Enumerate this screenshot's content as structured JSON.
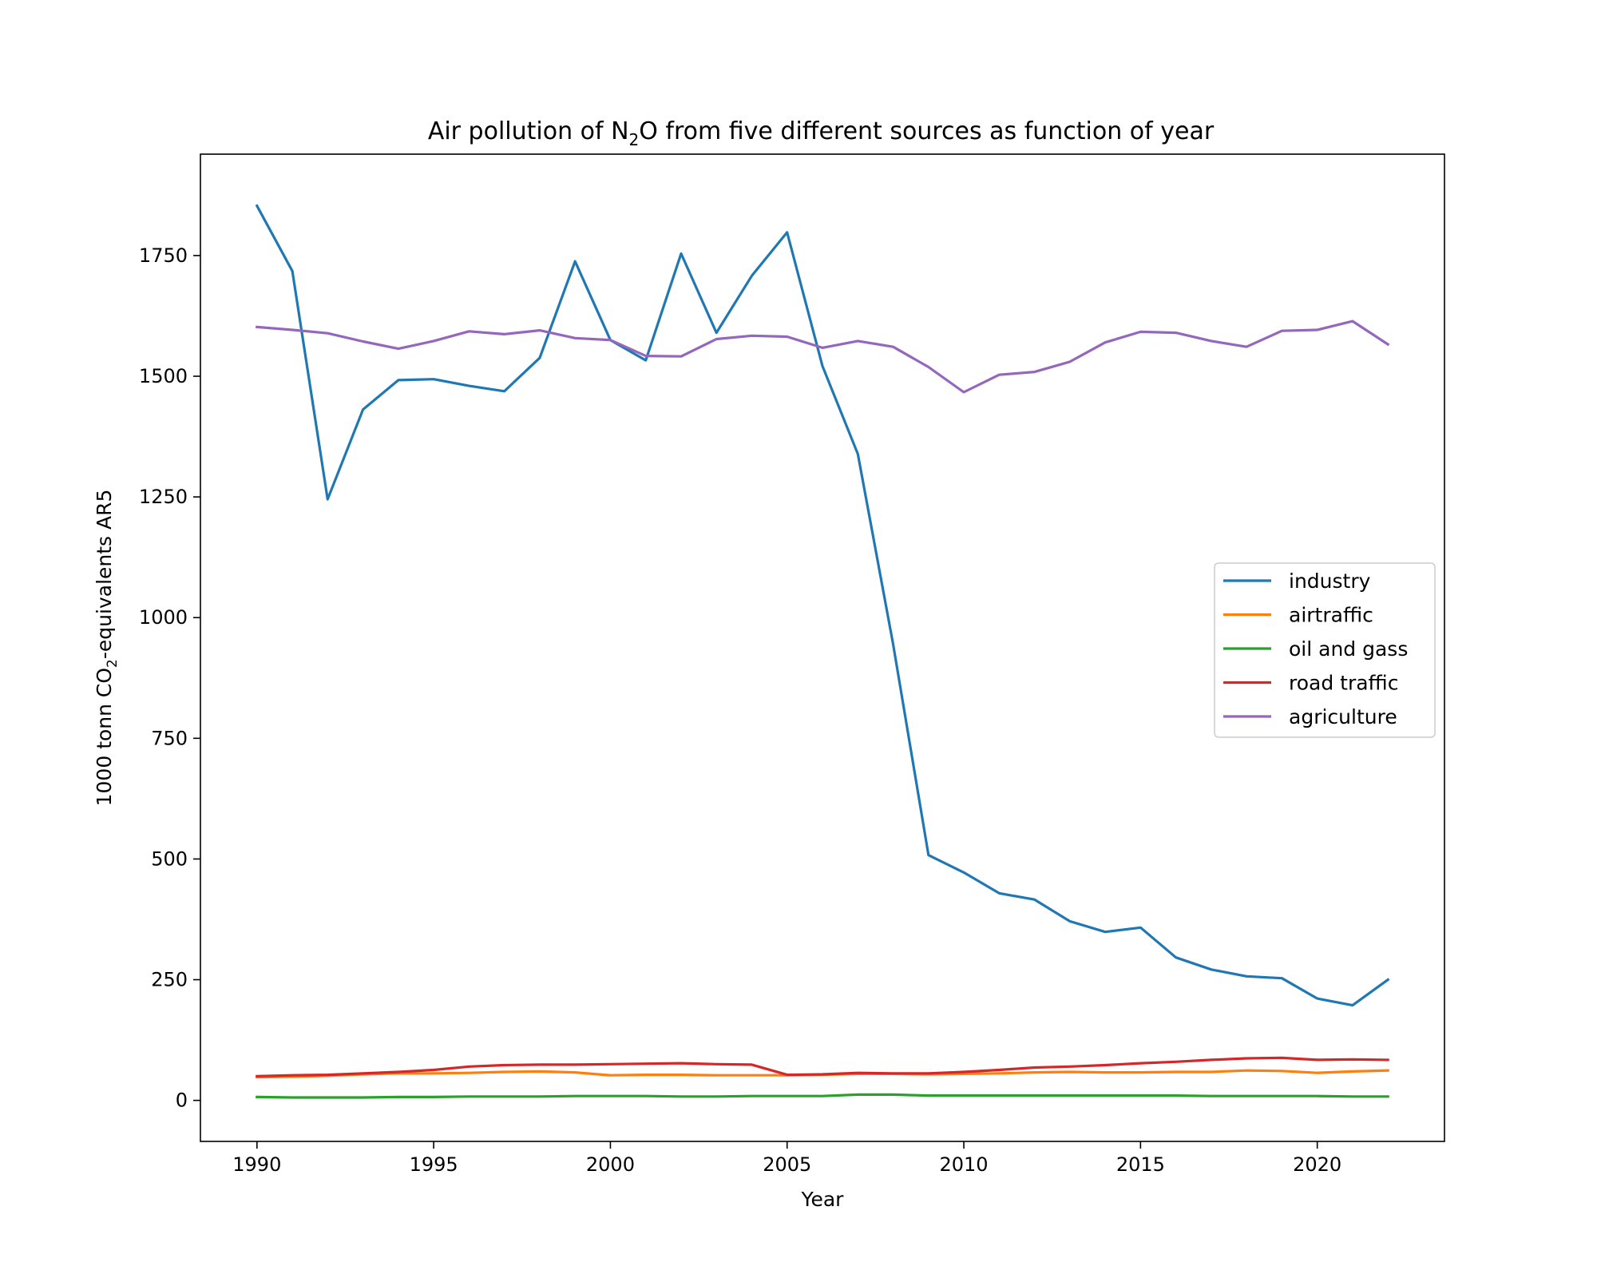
{
  "chart_data": {
    "type": "line",
    "title_prefix": "Air pollution of N",
    "title_sub": "2",
    "title_suffix": "O from five different sources as function of year",
    "xlabel": "Year",
    "ylabel_prefix": "1000 tonn CO",
    "ylabel_sub": "2",
    "ylabel_suffix": "-equivalents AR5",
    "xlim": [
      1988.4,
      2023.6
    ],
    "ylim": [
      -85,
      1960
    ],
    "xticks": [
      1990,
      1995,
      2000,
      2005,
      2010,
      2015,
      2020
    ],
    "yticks": [
      0,
      250,
      500,
      750,
      1000,
      1250,
      1500,
      1750
    ],
    "legend_position": "center-right",
    "grid": false,
    "x": [
      1990,
      1991,
      1992,
      1993,
      1994,
      1995,
      1996,
      1997,
      1998,
      1999,
      2000,
      2001,
      2002,
      2003,
      2004,
      2005,
      2006,
      2007,
      2008,
      2009,
      2010,
      2011,
      2012,
      2013,
      2014,
      2015,
      2016,
      2017,
      2018,
      2019,
      2020,
      2021,
      2022
    ],
    "series": [
      {
        "name": "industry",
        "color": "#1f77b4",
        "values": [
          1853,
          1718,
          1245,
          1431,
          1492,
          1494,
          1480,
          1469,
          1538,
          1738,
          1575,
          1533,
          1754,
          1590,
          1708,
          1798,
          1521,
          1339,
          945,
          508,
          472,
          429,
          416,
          371,
          349,
          358,
          296,
          271,
          257,
          253,
          211,
          197,
          250
        ]
      },
      {
        "name": "airtraffic",
        "color": "#ff7f0e",
        "values": [
          48,
          49,
          51,
          54,
          56,
          56,
          57,
          59,
          60,
          58,
          52,
          53,
          53,
          52,
          52,
          52,
          53,
          55,
          55,
          54,
          55,
          56,
          58,
          59,
          58,
          58,
          59,
          59,
          62,
          61,
          57,
          60,
          62
        ]
      },
      {
        "name": "oil and gass",
        "color": "#2ca02c",
        "values": [
          7,
          6,
          6,
          6,
          7,
          7,
          8,
          8,
          8,
          9,
          9,
          9,
          8,
          8,
          9,
          9,
          9,
          12,
          12,
          10,
          10,
          10,
          10,
          10,
          10,
          10,
          10,
          9,
          9,
          9,
          9,
          8,
          8
        ]
      },
      {
        "name": "road traffic",
        "color": "#d62728",
        "values": [
          50,
          52,
          53,
          56,
          59,
          63,
          70,
          73,
          74,
          74,
          75,
          76,
          77,
          75,
          74,
          53,
          54,
          57,
          56,
          56,
          59,
          63,
          68,
          70,
          73,
          77,
          80,
          84,
          87,
          88,
          84,
          85,
          84
        ]
      },
      {
        "name": "agriculture",
        "color": "#9467bd",
        "values": [
          1602,
          1596,
          1589,
          1572,
          1557,
          1573,
          1593,
          1587,
          1595,
          1579,
          1575,
          1542,
          1541,
          1577,
          1584,
          1582,
          1559,
          1573,
          1561,
          1519,
          1467,
          1503,
          1509,
          1530,
          1570,
          1592,
          1590,
          1573,
          1561,
          1594,
          1596,
          1614,
          1566
        ]
      }
    ]
  }
}
